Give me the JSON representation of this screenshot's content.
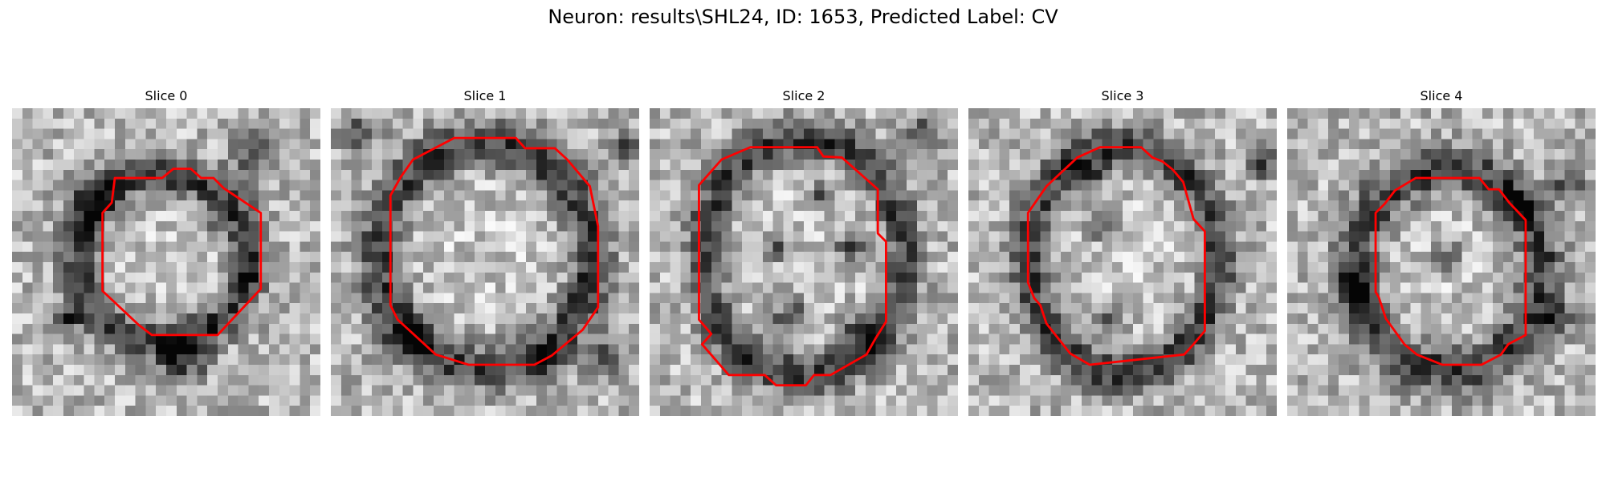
{
  "figure": {
    "title": "Neuron: results\\SHL24, ID: 1653, Predicted Label: CV",
    "outline_color": "#ff0000"
  },
  "slices": [
    {
      "title": "Slice 0"
    },
    {
      "title": "Slice 1"
    },
    {
      "title": "Slice 2"
    },
    {
      "title": "Slice 3"
    },
    {
      "title": "Slice 4"
    }
  ]
}
